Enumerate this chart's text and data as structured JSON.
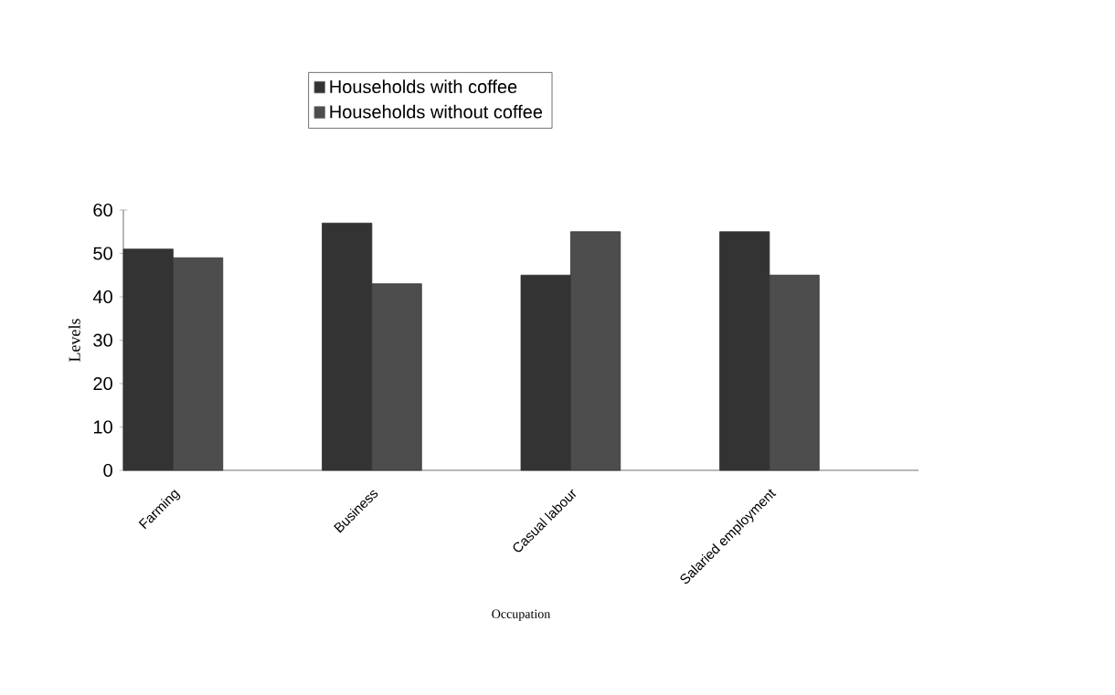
{
  "chart_data": {
    "type": "bar",
    "xlabel": "Occupation",
    "ylabel": "Levels",
    "categories": [
      "Farming",
      "Business",
      "Casual labour",
      "Salaried employment"
    ],
    "series": [
      {
        "name": "Households with coffee",
        "color": "#333333",
        "values": [
          51,
          57,
          45,
          55
        ]
      },
      {
        "name": "Households without coffee",
        "color": "#4d4d4d",
        "values": [
          49,
          43,
          55,
          45
        ]
      }
    ],
    "ylim": [
      0,
      60
    ],
    "yticks": [
      0,
      10,
      20,
      30,
      40,
      50,
      60
    ],
    "grid": false,
    "legend": "top"
  }
}
